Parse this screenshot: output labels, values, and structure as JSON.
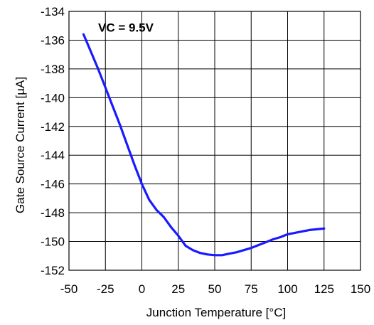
{
  "chart_data": {
    "type": "line",
    "title": "",
    "xlabel": "Junction Temperature [°C]",
    "ylabel": "Gate Source Current [µA]",
    "xlim": [
      -50,
      150
    ],
    "ylim": [
      -152,
      -134
    ],
    "x_ticks": [
      -50,
      -25,
      0,
      25,
      50,
      75,
      100,
      125,
      150
    ],
    "y_ticks": [
      -134,
      -136,
      -138,
      -140,
      -142,
      -144,
      -146,
      -148,
      -150,
      -152
    ],
    "grid": true,
    "annotation": "VC = 9.5V",
    "colors": {
      "series": "#1a1aff",
      "grid": "#000000"
    },
    "series": [
      {
        "x": [
          -40,
          -35,
          -30,
          -25,
          -20,
          -15,
          -10,
          -5,
          0,
          5,
          10,
          15,
          20,
          25,
          30,
          35,
          40,
          45,
          50,
          55,
          60,
          65,
          70,
          75,
          80,
          85,
          90,
          95,
          100,
          105,
          110,
          115,
          120,
          125
        ],
        "values": [
          -135.6,
          -136.8,
          -138.0,
          -139.3,
          -140.6,
          -141.9,
          -143.3,
          -144.7,
          -146.0,
          -147.1,
          -147.8,
          -148.3,
          -149.0,
          -149.6,
          -150.3,
          -150.6,
          -150.8,
          -150.9,
          -150.95,
          -150.95,
          -150.85,
          -150.75,
          -150.6,
          -150.45,
          -150.25,
          -150.05,
          -149.85,
          -149.7,
          -149.5,
          -149.4,
          -149.3,
          -149.2,
          -149.15,
          -149.1
        ]
      }
    ]
  }
}
